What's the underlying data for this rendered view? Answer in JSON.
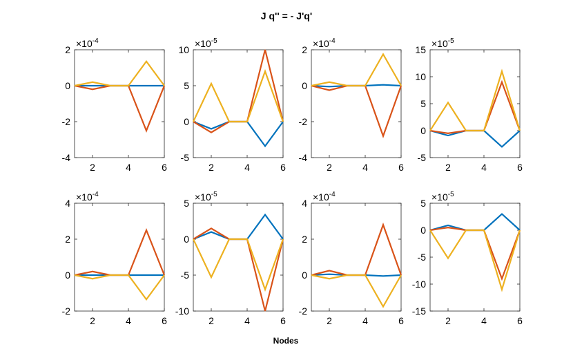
{
  "figure": {
    "suptitle": "J q'' =  - J'q'",
    "xlabel": "Nodes"
  },
  "colors": {
    "series1": "#0072BD",
    "series2": "#D95319",
    "series3": "#EDB120",
    "axis": "#262626"
  },
  "chart_data": [
    {
      "type": "line",
      "row": 1,
      "col": 1,
      "x": [
        1,
        2,
        3,
        4,
        5,
        6
      ],
      "xlim": [
        1,
        6
      ],
      "xticks": [
        2,
        4,
        6
      ],
      "ylim": [
        -4,
        2
      ],
      "yticks": [
        -4,
        -2,
        0,
        2
      ],
      "ytick_labels": [
        "-4",
        "-2",
        "0",
        "2"
      ],
      "exponent_base": "×10",
      "exponent_power": "-4",
      "series": [
        {
          "name": "series1",
          "values": [
            0,
            0,
            0,
            0,
            0,
            0
          ]
        },
        {
          "name": "series2",
          "values": [
            0,
            -0.2,
            0,
            0,
            -2.5,
            0
          ]
        },
        {
          "name": "series3",
          "values": [
            0,
            0.2,
            0,
            0,
            1.35,
            0
          ]
        }
      ]
    },
    {
      "type": "line",
      "row": 1,
      "col": 2,
      "x": [
        1,
        2,
        3,
        4,
        5,
        6
      ],
      "xlim": [
        1,
        6
      ],
      "xticks": [
        2,
        4,
        6
      ],
      "ylim": [
        -5,
        10
      ],
      "yticks": [
        -5,
        0,
        5,
        10
      ],
      "ytick_labels": [
        "-5",
        "0",
        "5",
        "10"
      ],
      "exponent_base": "×10",
      "exponent_power": "-5",
      "series": [
        {
          "name": "series1",
          "values": [
            0,
            -1,
            0,
            0,
            -3.4,
            0
          ]
        },
        {
          "name": "series2",
          "values": [
            0,
            -1.5,
            0,
            0,
            10,
            0
          ]
        },
        {
          "name": "series3",
          "values": [
            0,
            5.3,
            0,
            0,
            7,
            0
          ]
        }
      ]
    },
    {
      "type": "line",
      "row": 1,
      "col": 3,
      "x": [
        1,
        2,
        3,
        4,
        5,
        6
      ],
      "xlim": [
        1,
        6
      ],
      "xticks": [
        2,
        4,
        6
      ],
      "ylim": [
        -4,
        2
      ],
      "yticks": [
        -4,
        -2,
        0,
        2
      ],
      "ytick_labels": [
        "-4",
        "-2",
        "0",
        "2"
      ],
      "exponent_base": "×10",
      "exponent_power": "-4",
      "series": [
        {
          "name": "series1",
          "values": [
            0,
            -0.05,
            0,
            0,
            0.05,
            0
          ]
        },
        {
          "name": "series2",
          "values": [
            0,
            -0.25,
            0,
            0,
            -2.8,
            0
          ]
        },
        {
          "name": "series3",
          "values": [
            0,
            0.2,
            0,
            0,
            1.75,
            0
          ]
        }
      ]
    },
    {
      "type": "line",
      "row": 1,
      "col": 4,
      "x": [
        1,
        2,
        3,
        4,
        5,
        6
      ],
      "xlim": [
        1,
        6
      ],
      "xticks": [
        2,
        4,
        6
      ],
      "ylim": [
        -5,
        15
      ],
      "yticks": [
        -5,
        0,
        5,
        10,
        15
      ],
      "ytick_labels": [
        "-5",
        "0",
        "5",
        "10",
        "15"
      ],
      "exponent_base": "×10",
      "exponent_power": "-5",
      "series": [
        {
          "name": "series1",
          "values": [
            0,
            -0.9,
            0,
            0,
            -3,
            0
          ]
        },
        {
          "name": "series2",
          "values": [
            0,
            -0.5,
            0,
            0,
            9,
            0
          ]
        },
        {
          "name": "series3",
          "values": [
            0,
            5.2,
            0,
            0,
            11,
            0
          ]
        }
      ]
    },
    {
      "type": "line",
      "row": 2,
      "col": 1,
      "x": [
        1,
        2,
        3,
        4,
        5,
        6
      ],
      "xlim": [
        1,
        6
      ],
      "xticks": [
        2,
        4,
        6
      ],
      "ylim": [
        -2,
        4
      ],
      "yticks": [
        -2,
        0,
        2,
        4
      ],
      "ytick_labels": [
        "-2",
        "0",
        "2",
        "4"
      ],
      "exponent_base": "×10",
      "exponent_power": "-4",
      "series": [
        {
          "name": "series1",
          "values": [
            0,
            0,
            0,
            0,
            0,
            0
          ]
        },
        {
          "name": "series2",
          "values": [
            0,
            0.2,
            0,
            0,
            2.5,
            0
          ]
        },
        {
          "name": "series3",
          "values": [
            0,
            -0.2,
            0,
            0,
            -1.35,
            0
          ]
        }
      ]
    },
    {
      "type": "line",
      "row": 2,
      "col": 2,
      "x": [
        1,
        2,
        3,
        4,
        5,
        6
      ],
      "xlim": [
        1,
        6
      ],
      "xticks": [
        2,
        4,
        6
      ],
      "ylim": [
        -10,
        5
      ],
      "yticks": [
        -10,
        -5,
        0,
        5
      ],
      "ytick_labels": [
        "-10",
        "-5",
        "0",
        "5"
      ],
      "exponent_base": "×10",
      "exponent_power": "-5",
      "series": [
        {
          "name": "series1",
          "values": [
            0,
            1,
            0,
            0,
            3.4,
            0
          ]
        },
        {
          "name": "series2",
          "values": [
            0,
            1.5,
            0,
            0,
            -10,
            0
          ]
        },
        {
          "name": "series3",
          "values": [
            0,
            -5.3,
            0,
            0,
            -7,
            0
          ]
        }
      ]
    },
    {
      "type": "line",
      "row": 2,
      "col": 3,
      "x": [
        1,
        2,
        3,
        4,
        5,
        6
      ],
      "xlim": [
        1,
        6
      ],
      "xticks": [
        2,
        4,
        6
      ],
      "ylim": [
        -2,
        4
      ],
      "yticks": [
        -2,
        0,
        2,
        4
      ],
      "ytick_labels": [
        "-2",
        "0",
        "2",
        "4"
      ],
      "exponent_base": "×10",
      "exponent_power": "-4",
      "series": [
        {
          "name": "series1",
          "values": [
            0,
            0.05,
            0,
            0,
            -0.05,
            0
          ]
        },
        {
          "name": "series2",
          "values": [
            0,
            0.25,
            0,
            0,
            2.8,
            0
          ]
        },
        {
          "name": "series3",
          "values": [
            0,
            -0.2,
            0,
            0,
            -1.75,
            0
          ]
        }
      ]
    },
    {
      "type": "line",
      "row": 2,
      "col": 4,
      "x": [
        1,
        2,
        3,
        4,
        5,
        6
      ],
      "xlim": [
        1,
        6
      ],
      "xticks": [
        2,
        4,
        6
      ],
      "ylim": [
        -15,
        5
      ],
      "yticks": [
        -15,
        -10,
        -5,
        0,
        5
      ],
      "ytick_labels": [
        "-15",
        "-10",
        "-5",
        "0",
        "5"
      ],
      "exponent_base": "×10",
      "exponent_power": "-5",
      "series": [
        {
          "name": "series1",
          "values": [
            0,
            0.9,
            0,
            0,
            3,
            0
          ]
        },
        {
          "name": "series2",
          "values": [
            0,
            0.5,
            0,
            0,
            -9,
            0
          ]
        },
        {
          "name": "series3",
          "values": [
            0,
            -5.2,
            0,
            0,
            -11,
            0
          ]
        }
      ]
    }
  ]
}
